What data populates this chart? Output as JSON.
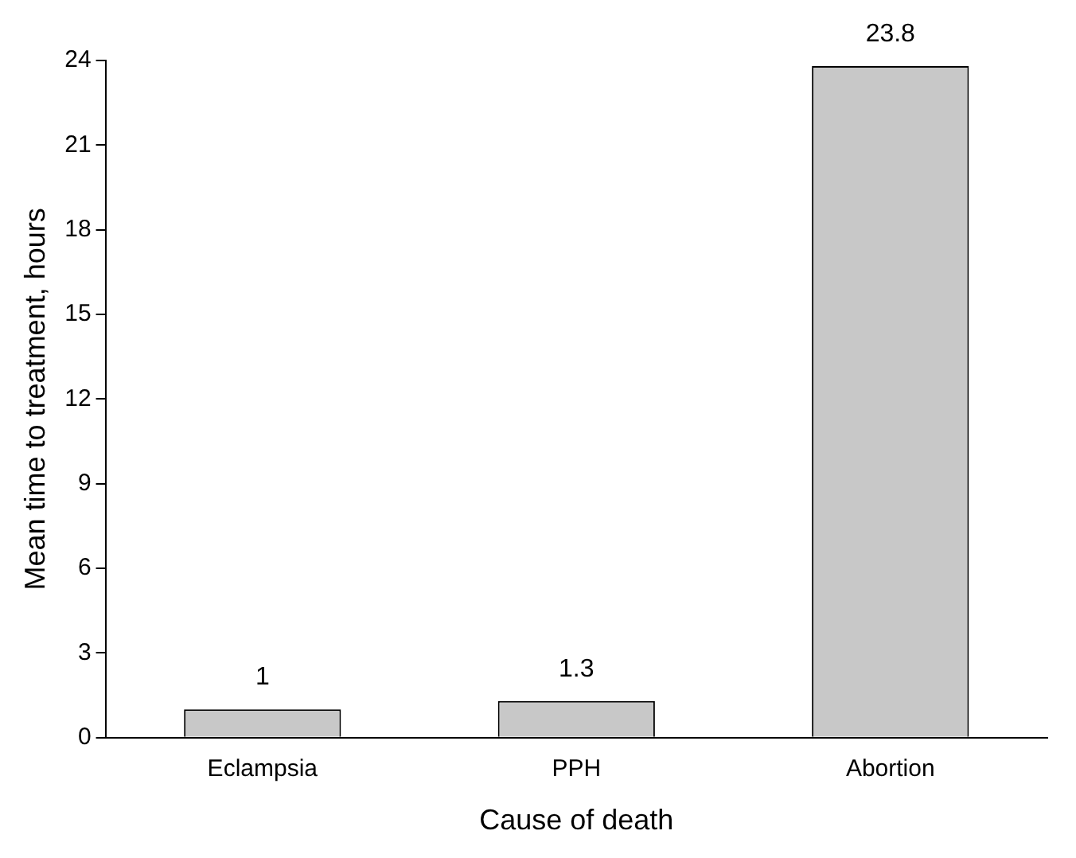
{
  "chart_data": {
    "type": "bar",
    "xlabel": "Cause of death",
    "ylabel": "Mean time to treatment, hours",
    "categories": [
      "Eclampsia",
      "PPH",
      "Abortion"
    ],
    "values": [
      1,
      1.3,
      23.8
    ],
    "color": "#c8c8c8",
    "ylim": [
      0,
      24
    ],
    "yticks": [
      0,
      3,
      6,
      9,
      12,
      15,
      18,
      21,
      24
    ],
    "grid": false,
    "legend": false,
    "data_labels": true
  }
}
